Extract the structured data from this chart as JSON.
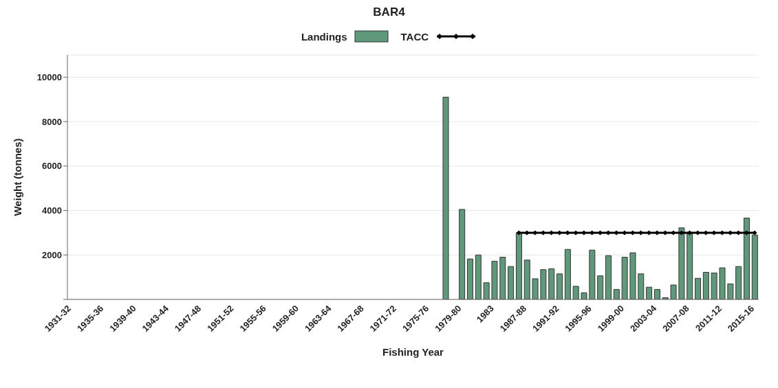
{
  "chart_data": {
    "type": "bar",
    "title": "BAR4",
    "xlabel": "Fishing Year",
    "ylabel": "Weight (tonnes)",
    "categories": [
      "1931-32",
      null,
      null,
      null,
      "1935-36",
      null,
      null,
      null,
      "1939-40",
      null,
      null,
      null,
      "1943-44",
      null,
      null,
      null,
      "1947-48",
      null,
      null,
      null,
      "1951-52",
      null,
      null,
      null,
      "1955-56",
      null,
      null,
      null,
      "1959-60",
      null,
      null,
      null,
      "1963-64",
      null,
      null,
      null,
      "1967-68",
      null,
      null,
      null,
      "1971-72",
      null,
      null,
      null,
      "1975-76",
      null,
      null,
      null,
      "1979-80",
      null,
      null,
      null,
      "1983",
      null,
      null,
      null,
      "1987-88",
      null,
      null,
      null,
      "1991-92",
      null,
      null,
      null,
      "1995-96",
      null,
      null,
      null,
      "1999-00",
      null,
      null,
      null,
      "2003-04",
      null,
      null,
      null,
      "2007-08",
      null,
      null,
      null,
      "2011-12",
      null,
      null,
      null,
      "2015-16"
    ],
    "series": [
      {
        "name": "Landings",
        "color": "#5e9a7a",
        "values": [
          null,
          null,
          null,
          null,
          null,
          null,
          null,
          null,
          null,
          null,
          null,
          null,
          null,
          null,
          null,
          null,
          null,
          null,
          null,
          null,
          null,
          null,
          null,
          null,
          null,
          null,
          null,
          null,
          null,
          null,
          null,
          null,
          null,
          null,
          null,
          null,
          null,
          null,
          null,
          null,
          null,
          null,
          null,
          null,
          null,
          null,
          9100,
          null,
          4050,
          1820,
          2000,
          750,
          1720,
          1900,
          1480,
          3000,
          1770,
          930,
          1340,
          1380,
          1150,
          2250,
          590,
          300,
          2220,
          1060,
          1970,
          450,
          1900,
          2100,
          1150,
          550,
          450,
          80,
          650,
          3220,
          3020,
          950,
          1220,
          1190,
          1420,
          700,
          1480,
          3660,
          2900
        ]
      },
      {
        "name": "TACC",
        "type": "line",
        "color": "#000000",
        "marker": "diamond",
        "values": [
          null,
          null,
          null,
          null,
          null,
          null,
          null,
          null,
          null,
          null,
          null,
          null,
          null,
          null,
          null,
          null,
          null,
          null,
          null,
          null,
          null,
          null,
          null,
          null,
          null,
          null,
          null,
          null,
          null,
          null,
          null,
          null,
          null,
          null,
          null,
          null,
          null,
          null,
          null,
          null,
          null,
          null,
          null,
          null,
          null,
          null,
          null,
          null,
          null,
          null,
          null,
          null,
          null,
          null,
          null,
          3000,
          3000,
          3000,
          3000,
          3000,
          3000,
          3000,
          3000,
          3000,
          3000,
          3000,
          3000,
          3000,
          3000,
          3000,
          3000,
          3000,
          3000,
          3000,
          3000,
          3000,
          3000,
          3000,
          3000,
          3000,
          3000,
          3000,
          3000,
          3000,
          3000
        ]
      }
    ],
    "ylim": [
      0,
      11000
    ],
    "yticks": [
      {
        "value": 0,
        "label": null
      },
      2000,
      4000,
      6000,
      8000,
      10000
    ],
    "grid": "y",
    "legend": "top"
  }
}
